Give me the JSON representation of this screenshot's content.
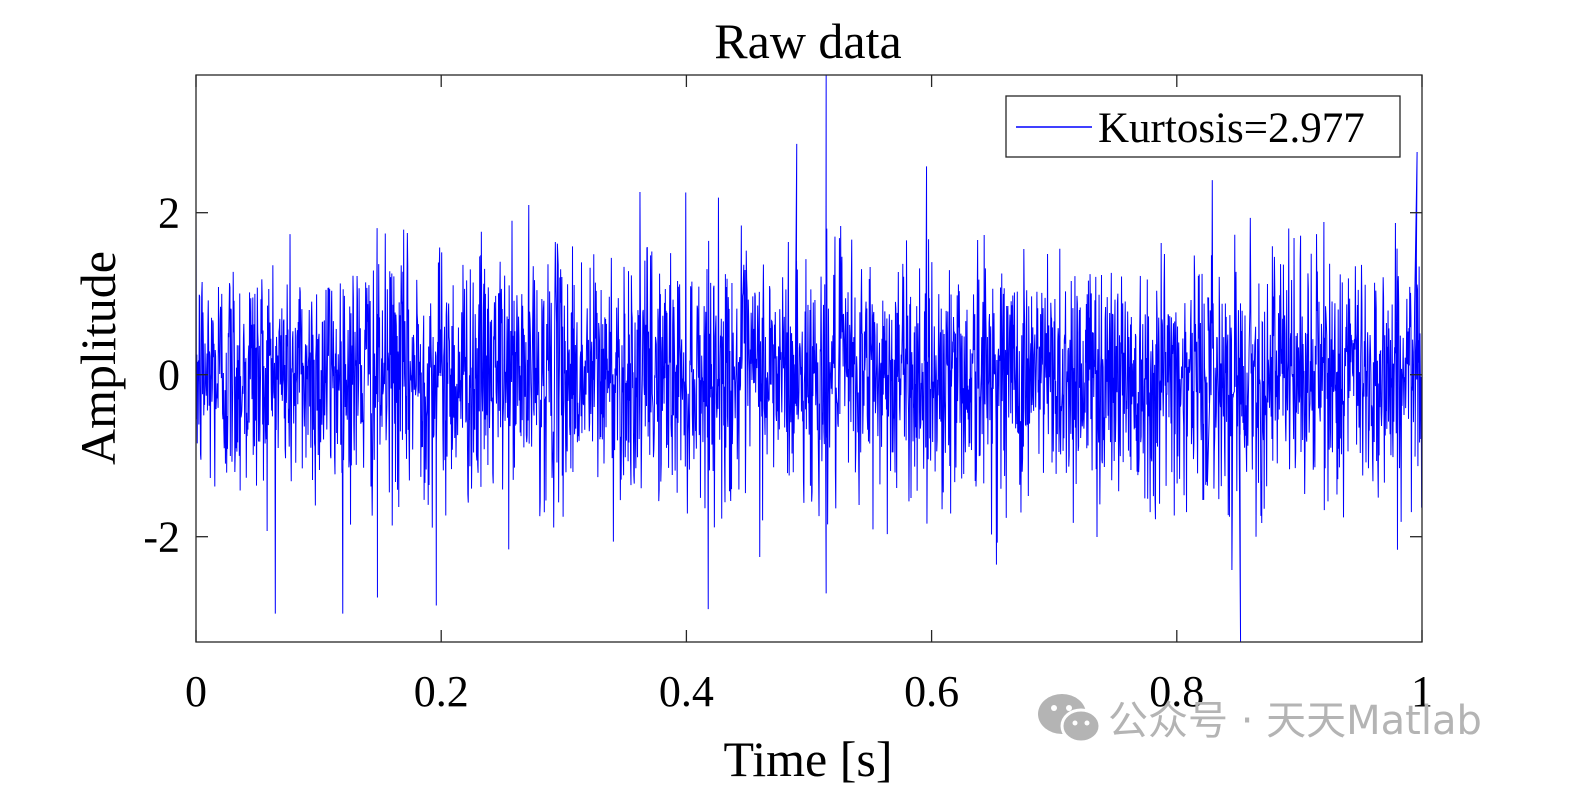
{
  "chart_data": {
    "type": "line",
    "title": "Raw data",
    "xlabel": "Time [s]",
    "ylabel": "Amplitude",
    "xlim": [
      0,
      1
    ],
    "ylim": [
      -3.3,
      3.7
    ],
    "xticks": [
      0,
      0.2,
      0.4,
      0.6,
      0.8,
      1
    ],
    "xtick_labels": [
      "0",
      "0.2",
      "0.4",
      "0.6",
      "0.8",
      "1"
    ],
    "yticks": [
      -2,
      0,
      2
    ],
    "ytick_labels": [
      "-2",
      "0",
      "2"
    ],
    "grid": false,
    "legend_position": "top-right",
    "series": [
      {
        "name": "Kurtosis=2.977",
        "color": "#0000ff",
        "signal": "dense zero-mean random noise",
        "std": 0.75,
        "n_points": 3000,
        "samples": [
          {
            "x": 0.514,
            "y": 3.7
          },
          {
            "x": 0.514,
            "y": -2.7
          },
          {
            "x": 0.852,
            "y": -3.3
          },
          {
            "x": 0.196,
            "y": -2.85
          },
          {
            "x": 0.148,
            "y": -2.75
          },
          {
            "x": 0.996,
            "y": 2.75
          },
          {
            "x": 0.49,
            "y": 2.85
          },
          {
            "x": 0.827,
            "y": 0.3
          },
          {
            "x": 0.827,
            "y": -0.2
          }
        ]
      }
    ]
  },
  "watermark": {
    "text": "公众号 · 天天Matlab",
    "icon": "wechat-icon"
  },
  "colors": {
    "line": "#0000ff",
    "axes": "#262626",
    "watermark": "#b4b4b4"
  }
}
